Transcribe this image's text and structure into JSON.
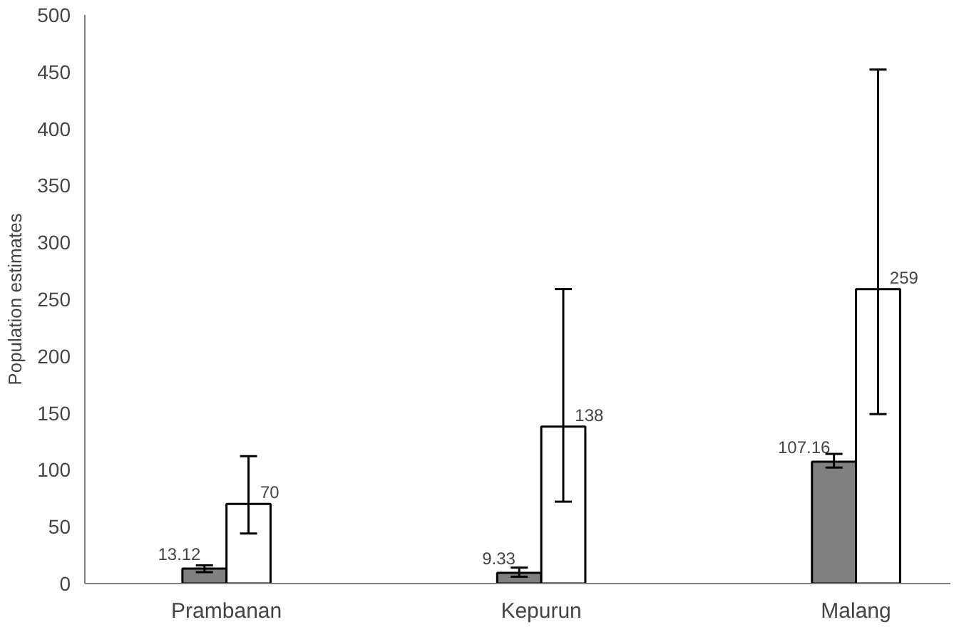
{
  "chart_data": {
    "type": "bar",
    "ylabel": "Population estimates",
    "categories": [
      "Prambanan",
      "Kepurun",
      "Malang"
    ],
    "series": [
      {
        "color": "#808080",
        "values": [
          13.12,
          9.33,
          107.16
        ],
        "errors": [
          [
            10,
            16
          ],
          [
            6,
            14
          ],
          [
            102,
            114
          ]
        ]
      },
      {
        "color": "#ffffff",
        "values": [
          70,
          138,
          259
        ],
        "errors": [
          [
            44,
            112
          ],
          [
            72,
            259
          ],
          [
            149,
            452
          ]
        ]
      }
    ],
    "ylim": [
      0,
      500
    ],
    "yticks": [
      0,
      50,
      100,
      150,
      200,
      250,
      300,
      350,
      400,
      450,
      500
    ],
    "data_labels": true
  }
}
